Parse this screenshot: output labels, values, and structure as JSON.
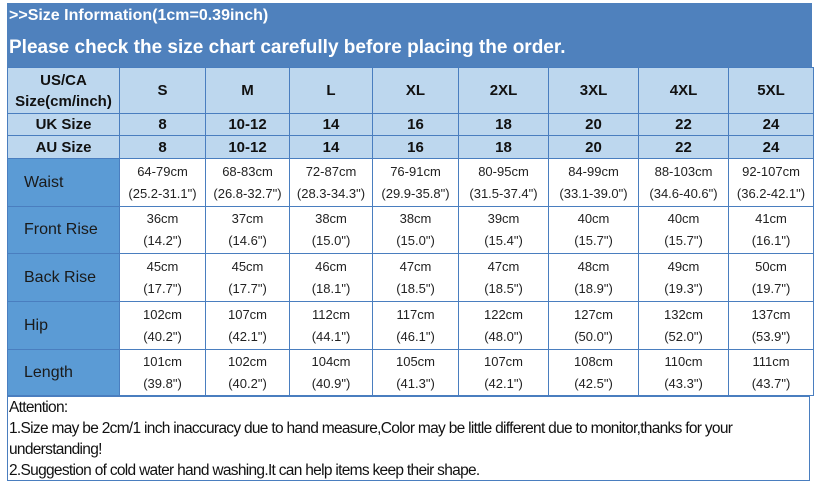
{
  "header": {
    "title": ">>Size Information(1cm=0.39inch)",
    "subtitle": "Please check the size chart carefully before placing the order."
  },
  "table": {
    "corner_label": [
      "US/CA",
      "Size(cm/inch)"
    ],
    "sizes": [
      "S",
      "M",
      "L",
      "XL",
      "2XL",
      "3XL",
      "4XL",
      "5XL"
    ],
    "uk": {
      "label": "UK Size",
      "values": [
        "8",
        "10-12",
        "14",
        "16",
        "18",
        "20",
        "22",
        "24"
      ]
    },
    "au": {
      "label": "AU Size",
      "values": [
        "8",
        "10-12",
        "14",
        "16",
        "18",
        "20",
        "22",
        "24"
      ]
    },
    "measurements": [
      {
        "label": "Waist",
        "cm": [
          "64-79cm",
          "68-83cm",
          "72-87cm",
          "76-91cm",
          "80-95cm",
          "84-99cm",
          "88-103cm",
          "92-107cm"
        ],
        "inch": [
          "(25.2-31.1\")",
          "(26.8-32.7\")",
          "(28.3-34.3\")",
          "(29.9-35.8\")",
          "(31.5-37.4\")",
          "(33.1-39.0\")",
          "(34.6-40.6\")",
          "(36.2-42.1\")"
        ]
      },
      {
        "label": "Front Rise",
        "cm": [
          "36cm",
          "37cm",
          "38cm",
          "38cm",
          "39cm",
          "40cm",
          "40cm",
          "41cm"
        ],
        "inch": [
          "(14.2\")",
          "(14.6\")",
          "(15.0\")",
          "(15.0\")",
          "(15.4\")",
          "(15.7\")",
          "(15.7\")",
          "(16.1\")"
        ]
      },
      {
        "label": "Back Rise",
        "cm": [
          "45cm",
          "45cm",
          "46cm",
          "47cm",
          "47cm",
          "48cm",
          "49cm",
          "50cm"
        ],
        "inch": [
          "(17.7\")",
          "(17.7\")",
          "(18.1\")",
          "(18.5\")",
          "(18.5\")",
          "(18.9\")",
          "(19.3\")",
          "(19.7\")"
        ]
      },
      {
        "label": "Hip",
        "cm": [
          "102cm",
          "107cm",
          "112cm",
          "117cm",
          "122cm",
          "127cm",
          "132cm",
          "137cm"
        ],
        "inch": [
          "(40.2\")",
          "(42.1\")",
          "(44.1\")",
          "(46.1\")",
          "(48.0\")",
          "(50.0\")",
          "(52.0\")",
          "(53.9\")"
        ]
      },
      {
        "label": "Length",
        "cm": [
          "101cm",
          "102cm",
          "104cm",
          "105cm",
          "107cm",
          "108cm",
          "110cm",
          "111cm"
        ],
        "inch": [
          "(39.8\")",
          "(40.2\")",
          "(40.9\")",
          "(41.3\")",
          "(42.1\")",
          "(42.5\")",
          "(43.3\")",
          "(43.7\")"
        ]
      }
    ]
  },
  "attention": {
    "title": "Attention:",
    "notes": [
      "1.Size may be 2cm/1 inch inaccuracy due to hand measure,Color may be little different due to monitor,thanks for your understanding!",
      "2.Suggestion of cold water hand washing.It can help items keep their shape."
    ]
  },
  "colors": {
    "header_bg": "#4f81bd",
    "size_header_bg": "#bdd7ee",
    "row_label_bg": "#5b9bd5",
    "border": "#4a7ebf"
  }
}
